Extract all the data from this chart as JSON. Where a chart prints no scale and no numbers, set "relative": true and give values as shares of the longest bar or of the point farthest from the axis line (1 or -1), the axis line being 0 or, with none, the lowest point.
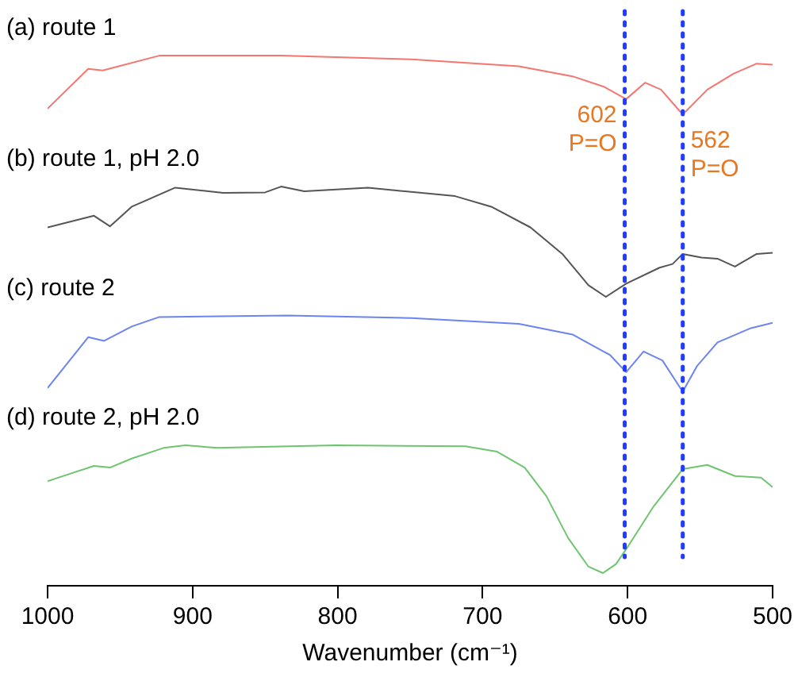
{
  "chart_data": {
    "type": "line",
    "xlabel": "Wavenumber (cm⁻¹)",
    "relative": true,
    "xlim": [
      1000,
      500
    ],
    "xticks": [
      1000,
      900,
      800,
      700,
      600,
      500
    ],
    "grid": false,
    "legend": false,
    "marker": "none",
    "line_style": "solid",
    "series": [
      {
        "name": "(a) route 1",
        "color": "#f4766e",
        "x": [
          1000,
          972,
          962,
          923,
          839,
          749,
          675,
          638,
          616,
          601,
          588,
          577,
          562,
          545,
          527,
          511,
          500
        ],
        "values": [
          0.9,
          0.975,
          0.972,
          1,
          1,
          0.993,
          0.98,
          0.961,
          0.941,
          0.918,
          0.949,
          0.936,
          0.889,
          0.936,
          0.966,
          0.985,
          0.983
        ]
      },
      {
        "name": "(b) route 1, pH 2.0",
        "color": "#555555",
        "x": [
          1000,
          968,
          957,
          942,
          912,
          879,
          850,
          839,
          823,
          779,
          719,
          694,
          667,
          645,
          627,
          615,
          601,
          578,
          569,
          562,
          549,
          538,
          526,
          511,
          500
        ],
        "values": [
          0.676,
          0.698,
          0.678,
          0.715,
          0.751,
          0.741,
          0.742,
          0.753,
          0.744,
          0.751,
          0.735,
          0.715,
          0.676,
          0.626,
          0.567,
          0.545,
          0.57,
          0.6,
          0.607,
          0.626,
          0.619,
          0.617,
          0.602,
          0.626,
          0.628
        ]
      },
      {
        "name": "(c) route 2",
        "color": "#6b84f0",
        "x": [
          1000,
          972,
          961,
          942,
          923,
          834,
          749,
          675,
          638,
          612,
          601,
          589,
          576,
          562,
          552,
          538,
          515,
          500
        ],
        "values": [
          0.373,
          0.469,
          0.462,
          0.489,
          0.507,
          0.51,
          0.505,
          0.494,
          0.474,
          0.435,
          0.403,
          0.442,
          0.425,
          0.366,
          0.415,
          0.459,
          0.486,
          0.496
        ]
      },
      {
        "name": "(d) route 2, pH 2.0",
        "color": "#6fc56f",
        "x": [
          1000,
          987,
          968,
          957,
          942,
          920,
          905,
          883,
          801,
          712,
          690,
          671,
          656,
          641,
          627,
          617,
          608,
          601,
          582,
          562,
          545,
          526,
          508,
          500
        ],
        "values": [
          0.197,
          0.209,
          0.226,
          0.223,
          0.24,
          0.26,
          0.265,
          0.26,
          0.265,
          0.263,
          0.253,
          0.223,
          0.169,
          0.09,
          0.036,
          0.024,
          0.041,
          0.069,
          0.15,
          0.22,
          0.228,
          0.207,
          0.204,
          0.186
        ]
      }
    ],
    "ref_lines": [
      {
        "axis": "x",
        "value": 602,
        "label": "602 P=O",
        "color": "#1f3cff",
        "line_style": "dotted"
      },
      {
        "axis": "x",
        "value": 562,
        "label": "562 P=O",
        "color": "#1f3cff",
        "line_style": "dotted"
      }
    ]
  }
}
